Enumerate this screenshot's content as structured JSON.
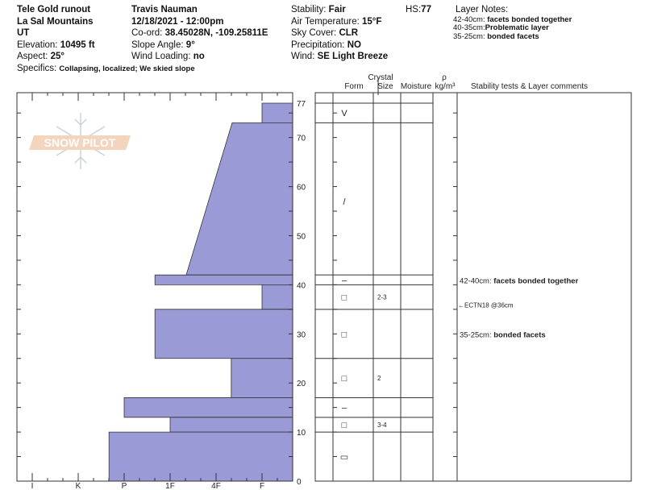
{
  "header": {
    "location": "Tele Gold runout",
    "range": "La Sal Mountains",
    "state": "UT",
    "elevation_label": "Elevation:",
    "elevation": "10495 ft",
    "aspect_label": "Aspect:",
    "aspect": "25°",
    "observer": "Travis Nauman",
    "datetime": "12/18/2021 - 12:00pm",
    "coord_label": "Co-ord:",
    "coord": "38.45028N, -109.25811E",
    "slope_label": "Slope Angle:",
    "slope": "9°",
    "wind_loading_label": "Wind Loading:",
    "wind_loading": "no",
    "specifics_label": "Specifics:",
    "specifics": "Collapsing, localized; We skied slope",
    "stability_label": "Stability:",
    "stability": "Fair",
    "air_temp_label": "Air Temperature:",
    "air_temp": "15°F",
    "sky_label": "Sky Cover:",
    "sky": "CLR",
    "precip_label": "Precipitation:",
    "precip": "NO",
    "wind_label": "Wind:",
    "wind": "SE Light Breeze",
    "hs_label": "HS:",
    "hs": "77",
    "layer_notes_title": "Layer Notes:",
    "layer_notes": [
      {
        "range": "42-40cm:",
        "text": "facets bonded together"
      },
      {
        "range": "40-35cm:",
        "text": "Problematic layer"
      },
      {
        "range": "35-25cm:",
        "text": "bonded facets"
      }
    ]
  },
  "logo": {
    "text": "SNOW PILOT",
    "color": "#f0b890"
  },
  "table_headers": {
    "crystal": "Crystal",
    "form": "Form",
    "size": "Size",
    "moisture": "Moisture",
    "rho": "ρ",
    "density_unit": "kg/m³",
    "comments": "Stability tests & Layer comments"
  },
  "chart_data": {
    "type": "bar",
    "hardness_ticks": [
      "I",
      "K",
      "P",
      "1F",
      "4F",
      "F"
    ],
    "depth_ticks": [
      0,
      10,
      20,
      30,
      40,
      50,
      60,
      70,
      77
    ],
    "depth_range": [
      0,
      77
    ],
    "bar_color": "#9a9ad6",
    "layers": [
      {
        "top": 77,
        "bottom": 73,
        "hardness_top": 5,
        "hardness_bottom": 5,
        "form": "V",
        "size": ""
      },
      {
        "top": 73,
        "bottom": 42,
        "hardness_top": 4.35,
        "hardness_bottom": 3.35,
        "form": "/",
        "size": ""
      },
      {
        "top": 42,
        "bottom": 40,
        "hardness_top": 2.67,
        "hardness_bottom": 2.67,
        "form": "–",
        "size": ""
      },
      {
        "top": 40,
        "bottom": 35,
        "hardness_top": 5,
        "hardness_bottom": 5,
        "form": "□",
        "size": "2-3"
      },
      {
        "top": 35,
        "bottom": 25,
        "hardness_top": 2.67,
        "hardness_bottom": 2.67,
        "form": "□",
        "size": ""
      },
      {
        "top": 25,
        "bottom": 17,
        "hardness_top": 4.33,
        "hardness_bottom": 4.33,
        "form": "□",
        "size": "2"
      },
      {
        "top": 17,
        "bottom": 13,
        "hardness_top": 2,
        "hardness_bottom": 2,
        "form": "–",
        "size": ""
      },
      {
        "top": 13,
        "bottom": 10,
        "hardness_top": 3,
        "hardness_bottom": 3,
        "form": "□",
        "size": "3-4"
      },
      {
        "top": 10,
        "bottom": 0,
        "hardness_top": 1.67,
        "hardness_bottom": 1.67,
        "form": "▭",
        "size": ""
      }
    ],
    "comments": [
      {
        "depth": 41,
        "range": "42-40cm:",
        "text": "facets bonded together",
        "bold": true
      },
      {
        "depth": 36,
        "range": "",
        "text": "←ECTN18 @36cm",
        "bold": false
      },
      {
        "depth": 30,
        "range": "35-25cm:",
        "text": "bonded facets",
        "bold": true
      }
    ]
  }
}
